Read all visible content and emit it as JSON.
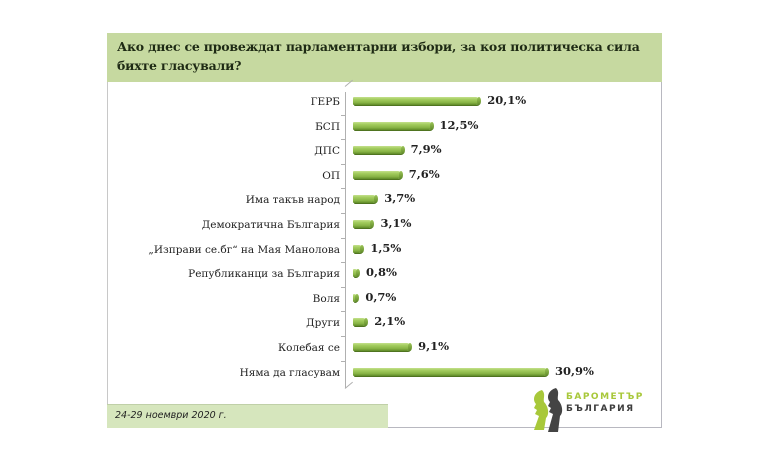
{
  "header": {
    "title": "Ако днес се провеждат парламентарни избори, за коя политическа сила бихте гласували?"
  },
  "footer": {
    "date": "24-29 ноември 2020 г."
  },
  "logo": {
    "line1": "БАРОМЕТЪР",
    "line2": "БЪЛГАРИЯ",
    "colors": {
      "green": "#a8c83a",
      "gray": "#3c3c3c"
    }
  },
  "colors": {
    "header_bg": "#c6d9a0",
    "footer_bg": "#d6e6bd",
    "bar": "#8db84a"
  },
  "chart_data": {
    "type": "bar",
    "orientation": "horizontal",
    "title": "Ако днес се провеждат парламентарни избори, за коя политическа сила бихте гласували?",
    "xlabel": "",
    "ylabel": "",
    "unit": "%",
    "grid": false,
    "legend": null,
    "categories": [
      "ГЕРБ",
      "БСП",
      "ДПС",
      "ОП",
      "Има такъв народ",
      "Демократична България",
      "„Изправи се.бг“ на Мая Манолова",
      "Републиканци за България",
      "Воля",
      "Други",
      "Колебая се",
      "Няма да гласувам"
    ],
    "values": [
      20.1,
      12.5,
      7.9,
      7.6,
      3.7,
      3.1,
      1.5,
      0.8,
      0.7,
      2.1,
      9.1,
      30.9
    ],
    "value_labels": [
      "20,1%",
      "12,5%",
      "7,9%",
      "7,6%",
      "3,7%",
      "3,1%",
      "1,5%",
      "0,8%",
      "0,7%",
      "2,1%",
      "9,1%",
      "30,9%"
    ],
    "xlim": [
      0,
      32
    ],
    "annotation": "24-29 ноември 2020 г."
  }
}
